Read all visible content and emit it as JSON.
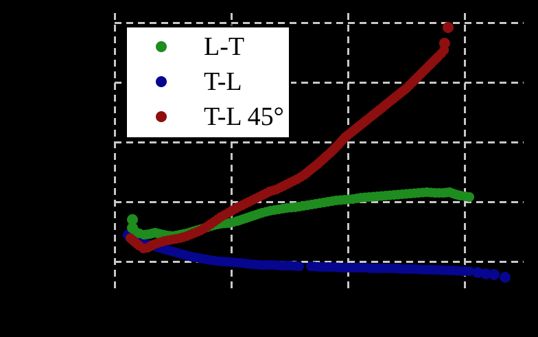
{
  "figure": {
    "background_color": "#000000",
    "note": "Static scatter chart; axis tick labels, axis titles and frame are not visible (black on black background). Only dashed gridlines, legend and data markers are visible."
  },
  "chart_data": {
    "type": "scatter",
    "title": "",
    "xlabel": "",
    "ylabel": "",
    "units": "grid-line spacings (axis tick labels not legible in image)",
    "x_range": [
      0,
      3.506
    ],
    "y_range": [
      -0.506,
      4.161
    ],
    "grid": {
      "visible": true,
      "style": "dashed",
      "color": "#c8c8c8",
      "x_positions": [
        0,
        1,
        2,
        3
      ],
      "y_positions": [
        0,
        1,
        2,
        3,
        4
      ]
    },
    "legend": {
      "position": "upper-left",
      "background": "#ffffff",
      "border_color": "#000000",
      "text_color": "#000000",
      "entries": [
        {
          "label": "L-T",
          "color": "#1e8c1e"
        },
        {
          "label": "T-L",
          "color": "#06068f"
        },
        {
          "label": "T-L 45°",
          "color": "#8e0f0f"
        }
      ]
    },
    "series": [
      {
        "name": "L-T",
        "color": "#1e8c1e",
        "marker": "circle",
        "z": 2,
        "segments": [
          [
            [
              0.176,
              0.506
            ],
            [
              0.212,
              0.471
            ],
            [
              0.253,
              0.448
            ],
            [
              0.3,
              0.46
            ],
            [
              0.347,
              0.483
            ],
            [
              0.394,
              0.46
            ],
            [
              0.447,
              0.437
            ],
            [
              0.5,
              0.425
            ],
            [
              0.559,
              0.448
            ],
            [
              0.618,
              0.471
            ],
            [
              0.676,
              0.506
            ],
            [
              0.735,
              0.54
            ],
            [
              0.794,
              0.575
            ],
            [
              0.853,
              0.609
            ],
            [
              0.912,
              0.632
            ],
            [
              0.982,
              0.644
            ],
            [
              1.053,
              0.678
            ],
            [
              1.124,
              0.724
            ],
            [
              1.194,
              0.77
            ],
            [
              1.265,
              0.816
            ],
            [
              1.335,
              0.851
            ],
            [
              1.406,
              0.874
            ],
            [
              1.476,
              0.897
            ],
            [
              1.547,
              0.908
            ],
            [
              1.618,
              0.931
            ],
            [
              1.688,
              0.954
            ],
            [
              1.759,
              0.977
            ],
            [
              1.829,
              1.0
            ],
            [
              1.9,
              1.023
            ],
            [
              1.971,
              1.034
            ],
            [
              2.041,
              1.046
            ],
            [
              2.112,
              1.069
            ],
            [
              2.182,
              1.08
            ],
            [
              2.253,
              1.092
            ],
            [
              2.324,
              1.103
            ],
            [
              2.394,
              1.115
            ],
            [
              2.465,
              1.126
            ],
            [
              2.535,
              1.138
            ],
            [
              2.606,
              1.149
            ],
            [
              2.676,
              1.161
            ],
            [
              2.747,
              1.149
            ],
            [
              2.818,
              1.149
            ],
            [
              2.871,
              1.161
            ],
            [
              2.918,
              1.126
            ],
            [
              2.965,
              1.103
            ],
            [
              3.006,
              1.092
            ],
            [
              3.041,
              1.08
            ]
          ]
        ],
        "outlier_dots": [
          [
            0.153,
            0.701
          ],
          [
            0.153,
            0.563
          ]
        ]
      },
      {
        "name": "T-L",
        "color": "#06068f",
        "marker": "circle",
        "z": 1,
        "segments": [
          [
            [
              0.112,
              0.448
            ],
            [
              0.141,
              0.402
            ],
            [
              0.171,
              0.368
            ],
            [
              0.206,
              0.333
            ],
            [
              0.247,
              0.31
            ],
            [
              0.294,
              0.276
            ],
            [
              0.347,
              0.253
            ],
            [
              0.406,
              0.218
            ],
            [
              0.465,
              0.184
            ],
            [
              0.529,
              0.149
            ],
            [
              0.594,
              0.115
            ],
            [
              0.659,
              0.08
            ],
            [
              0.724,
              0.057
            ],
            [
              0.788,
              0.034
            ],
            [
              0.859,
              0.011
            ],
            [
              0.929,
              0.0
            ],
            [
              1.0,
              -0.011
            ],
            [
              1.082,
              -0.023
            ],
            [
              1.171,
              -0.046
            ],
            [
              1.259,
              -0.057
            ],
            [
              1.347,
              -0.057
            ],
            [
              1.435,
              -0.069
            ],
            [
              1.512,
              -0.069
            ],
            [
              1.582,
              -0.08
            ]
          ],
          [
            [
              1.682,
              -0.08
            ],
            [
              1.771,
              -0.092
            ],
            [
              1.859,
              -0.092
            ],
            [
              1.947,
              -0.103
            ],
            [
              2.035,
              -0.103
            ],
            [
              2.124,
              -0.103
            ],
            [
              2.212,
              -0.115
            ],
            [
              2.3,
              -0.115
            ],
            [
              2.388,
              -0.115
            ],
            [
              2.476,
              -0.126
            ],
            [
              2.565,
              -0.126
            ],
            [
              2.653,
              -0.138
            ],
            [
              2.741,
              -0.138
            ],
            [
              2.829,
              -0.149
            ],
            [
              2.9,
              -0.149
            ],
            [
              2.971,
              -0.161
            ],
            [
              3.041,
              -0.161
            ]
          ]
        ],
        "outlier_dots": [
          [
            3.112,
            -0.184
          ],
          [
            3.182,
            -0.207
          ],
          [
            3.253,
            -0.218
          ],
          [
            3.347,
            -0.264
          ]
        ]
      },
      {
        "name": "T-L 45°",
        "color": "#8e0f0f",
        "marker": "circle",
        "z": 3,
        "segments": [
          [
            [
              0.135,
              0.391
            ],
            [
              0.176,
              0.322
            ],
            [
              0.212,
              0.264
            ],
            [
              0.247,
              0.218
            ],
            [
              0.282,
              0.23
            ],
            [
              0.324,
              0.276
            ],
            [
              0.371,
              0.31
            ],
            [
              0.429,
              0.345
            ],
            [
              0.494,
              0.368
            ],
            [
              0.559,
              0.391
            ],
            [
              0.618,
              0.425
            ],
            [
              0.676,
              0.471
            ],
            [
              0.735,
              0.517
            ],
            [
              0.794,
              0.586
            ],
            [
              0.853,
              0.667
            ],
            [
              0.912,
              0.747
            ],
            [
              0.976,
              0.816
            ],
            [
              1.035,
              0.885
            ],
            [
              1.094,
              0.943
            ],
            [
              1.153,
              1.0
            ],
            [
              1.212,
              1.057
            ],
            [
              1.271,
              1.115
            ],
            [
              1.329,
              1.172
            ],
            [
              1.388,
              1.207
            ],
            [
              1.447,
              1.264
            ],
            [
              1.506,
              1.322
            ],
            [
              1.565,
              1.379
            ],
            [
              1.624,
              1.448
            ],
            [
              1.682,
              1.54
            ],
            [
              1.741,
              1.632
            ],
            [
              1.8,
              1.736
            ],
            [
              1.859,
              1.839
            ],
            [
              1.918,
              1.954
            ],
            [
              1.976,
              2.08
            ],
            [
              2.035,
              2.172
            ],
            [
              2.094,
              2.264
            ],
            [
              2.153,
              2.356
            ],
            [
              2.212,
              2.448
            ],
            [
              2.271,
              2.54
            ],
            [
              2.329,
              2.632
            ],
            [
              2.388,
              2.724
            ],
            [
              2.447,
              2.816
            ],
            [
              2.506,
              2.908
            ],
            [
              2.553,
              3.0
            ],
            [
              2.6,
              3.092
            ],
            [
              2.647,
              3.184
            ],
            [
              2.694,
              3.276
            ],
            [
              2.735,
              3.356
            ],
            [
              2.771,
              3.425
            ],
            [
              2.8,
              3.483
            ],
            [
              2.824,
              3.54
            ]
          ]
        ],
        "outlier_dots": [
          [
            2.829,
            3.655
          ],
          [
            2.859,
            3.92
          ]
        ]
      }
    ]
  }
}
